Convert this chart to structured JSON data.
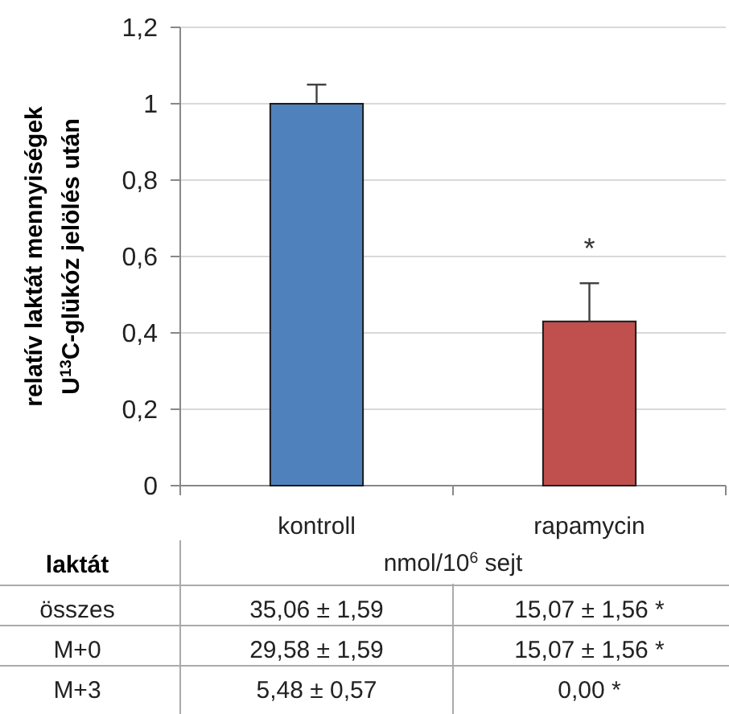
{
  "chart_data": {
    "type": "bar",
    "ylabel": "relatív laktát mennyiségek\nU$^{13}$C-glükóz jelölés után",
    "categories": [
      "kontroll",
      "rapamycin"
    ],
    "values": [
      1.0,
      0.43
    ],
    "colors": [
      "#4f81bd",
      "#c0504d"
    ],
    "errors": [
      [
        1.0,
        1.05
      ],
      [
        0.43,
        0.53
      ]
    ],
    "ylim": [
      0,
      1.2
    ],
    "yticks": [
      0,
      {
        "value": 0.2,
        "label": "0,2"
      },
      {
        "value": 0.4,
        "label": "0,4"
      },
      {
        "value": 0.6,
        "label": "0,6"
      },
      {
        "value": 0.8,
        "label": "0,8"
      },
      1,
      {
        "value": 1.2,
        "label": "1,2"
      }
    ],
    "grid": "y",
    "annotations": [
      "*",
      "laktát",
      "nmol/10$^{6}$ sejt",
      "összes",
      "35,06 ± 1,59",
      "15,07 ± 1,56 *",
      "M+0",
      "29,58 ± 1,59",
      "15,07 ± 1,56 *",
      "M+3",
      "5,48 ± 0,57",
      "0,00 *"
    ]
  }
}
